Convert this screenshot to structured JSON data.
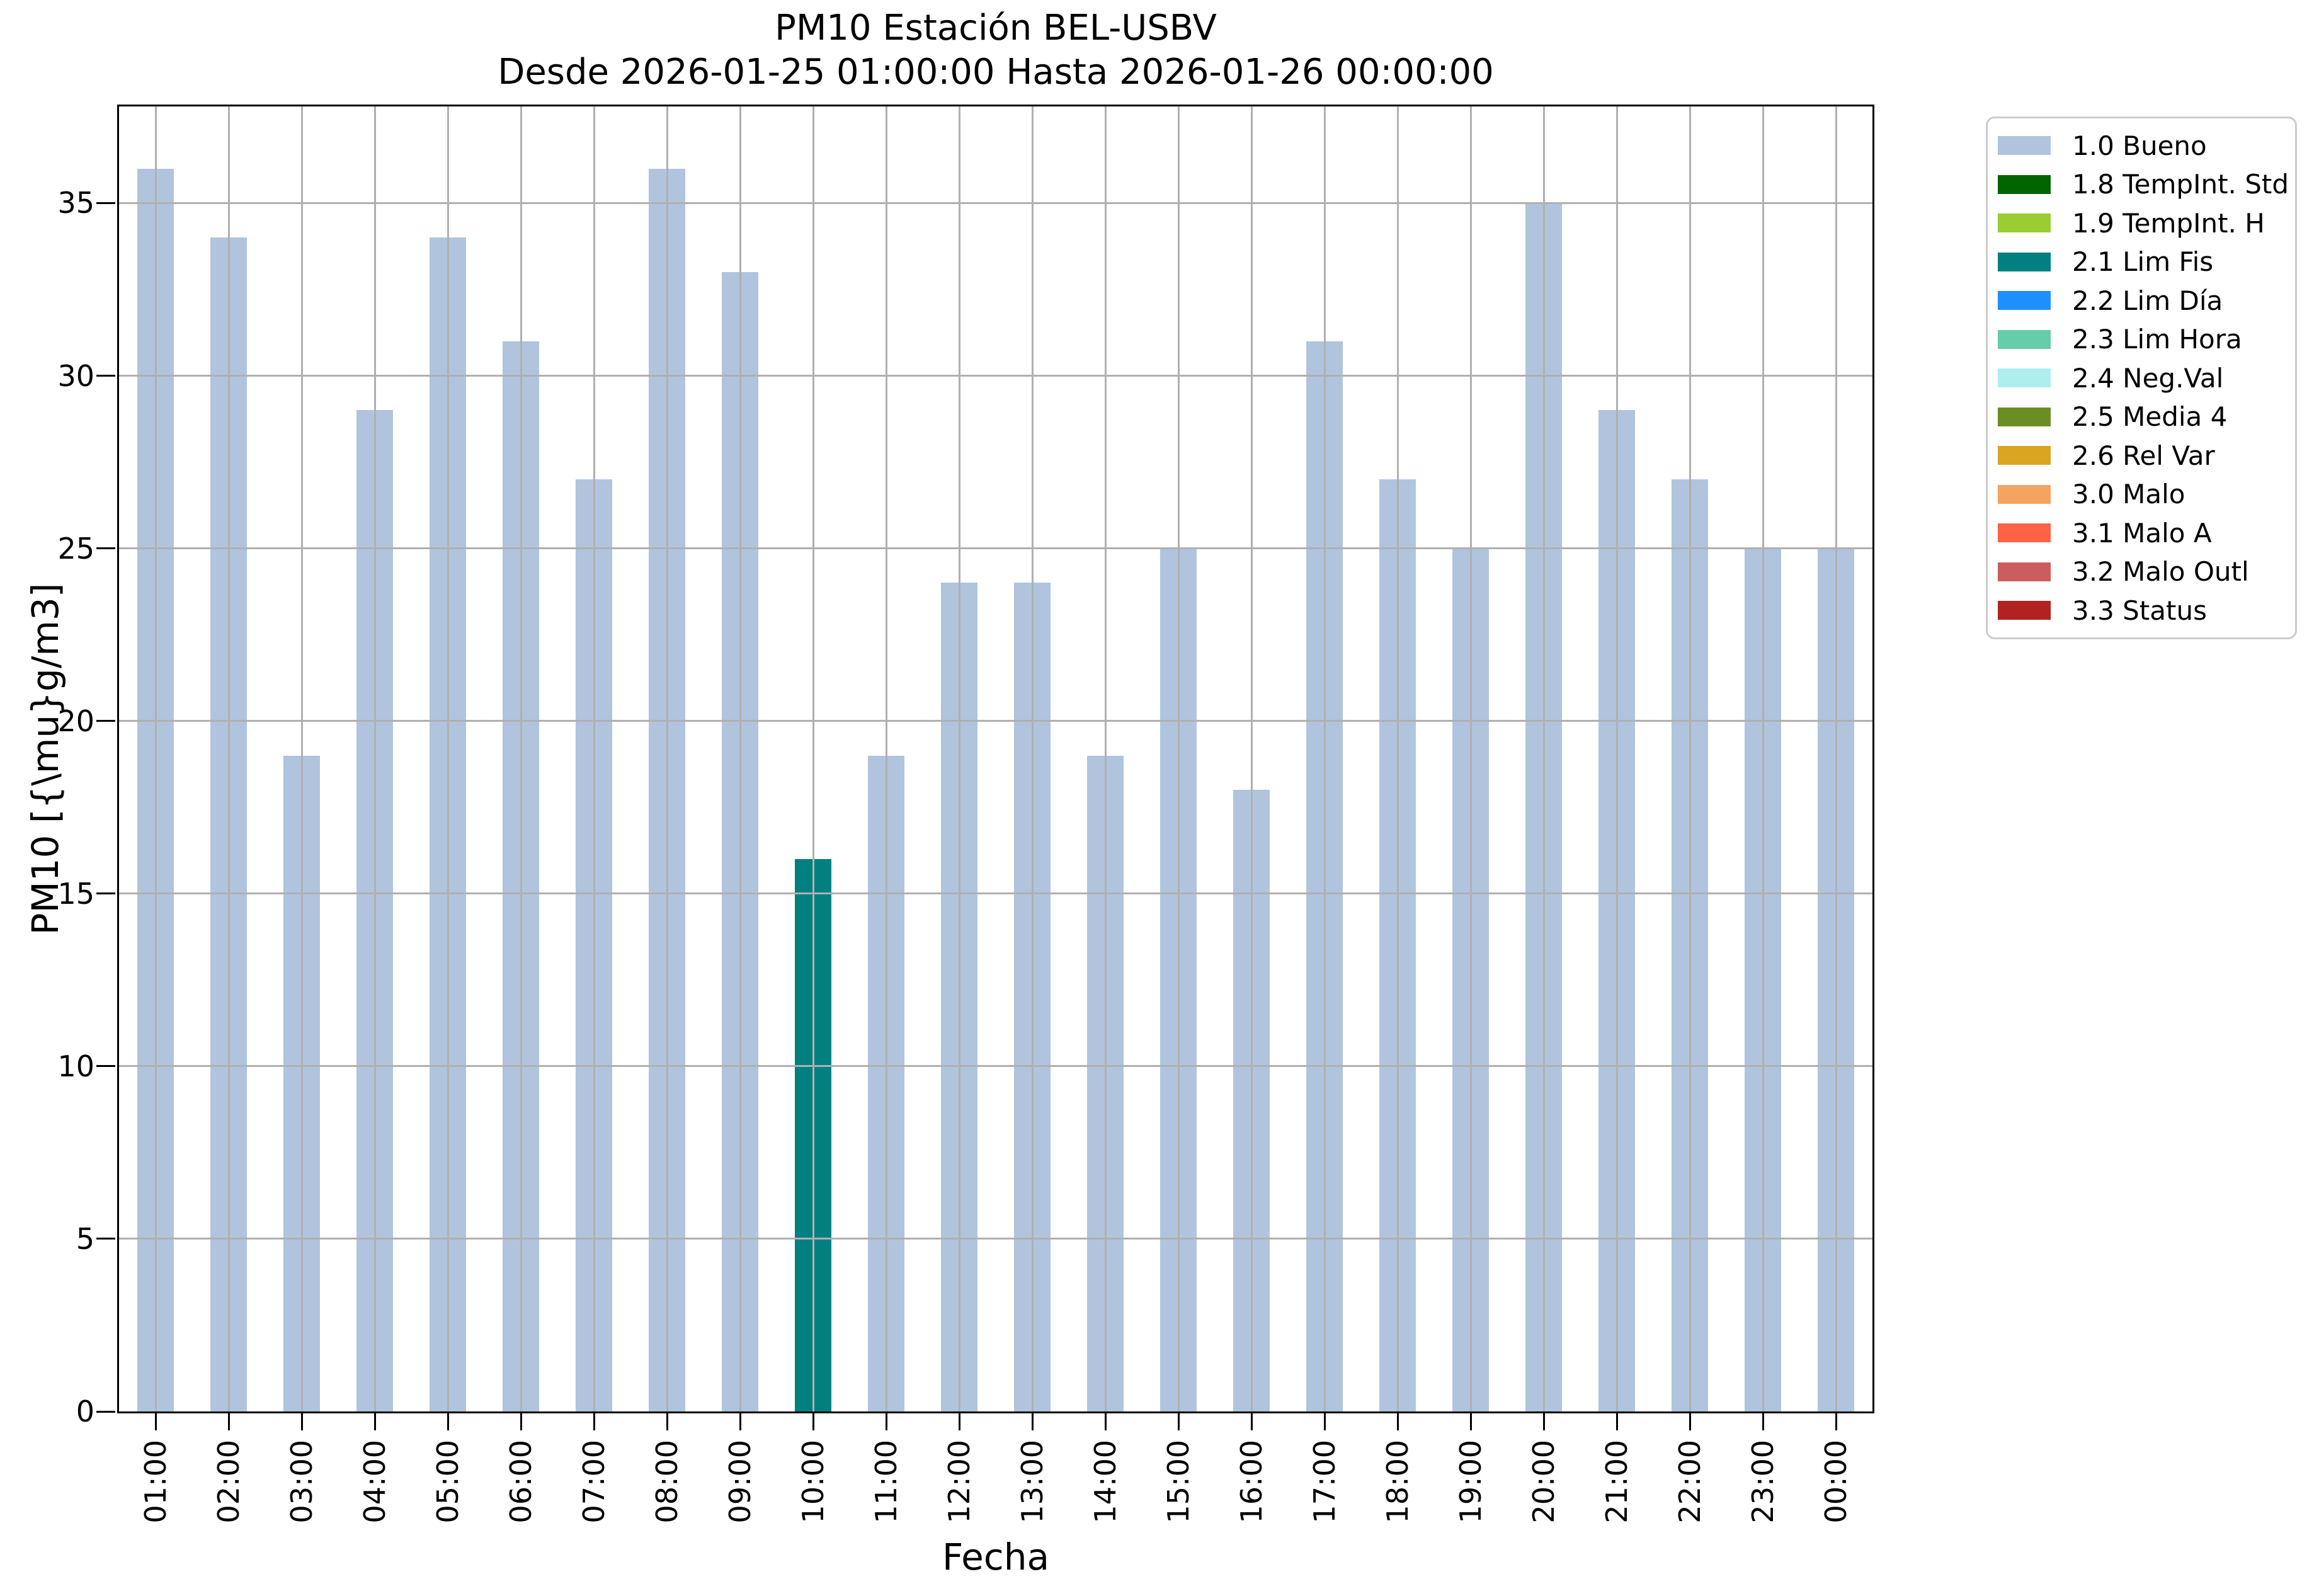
{
  "chart_data": {
    "type": "bar",
    "title": "PM10 Estación BEL-USBV",
    "subtitle": "Desde 2026-01-25 01:00:00 Hasta 2026-01-26 00:00:00",
    "xlabel": "Fecha",
    "ylabel": "PM10 [{\\mu}g/m3]",
    "categories": [
      "01:00",
      "02:00",
      "03:00",
      "04:00",
      "05:00",
      "06:00",
      "07:00",
      "08:00",
      "09:00",
      "10:00",
      "11:00",
      "12:00",
      "13:00",
      "14:00",
      "15:00",
      "16:00",
      "17:00",
      "18:00",
      "19:00",
      "20:00",
      "21:00",
      "22:00",
      "23:00",
      "00:00"
    ],
    "values": [
      36,
      34,
      19,
      29,
      34,
      31,
      27,
      36,
      33,
      16,
      19,
      24,
      24,
      19,
      25,
      18,
      31,
      27,
      25,
      35,
      29,
      27,
      25,
      25
    ],
    "bar_status": [
      "1.0 Bueno",
      "1.0 Bueno",
      "1.0 Bueno",
      "1.0 Bueno",
      "1.0 Bueno",
      "1.0 Bueno",
      "1.0 Bueno",
      "1.0 Bueno",
      "1.0 Bueno",
      "2.1 Lim Fis",
      "1.0 Bueno",
      "1.0 Bueno",
      "1.0 Bueno",
      "1.0 Bueno",
      "1.0 Bueno",
      "1.0 Bueno",
      "1.0 Bueno",
      "1.0 Bueno",
      "1.0 Bueno",
      "1.0 Bueno",
      "1.0 Bueno",
      "1.0 Bueno",
      "1.0 Bueno",
      "1.0 Bueno"
    ],
    "status_colors": {
      "1.0 Bueno": "#b0c4de",
      "2.1 Lim Fis": "#008080"
    },
    "ylim": [
      0,
      37.8
    ],
    "yticks": [
      0,
      5,
      10,
      15,
      20,
      25,
      30,
      35
    ],
    "grid": true,
    "gridline_color": "#b0b0b0",
    "legend_position": "upper-right-outside",
    "legend": [
      {
        "label": "1.0 Bueno",
        "color": "#b0c4de"
      },
      {
        "label": "1.8 TempInt. Std",
        "color": "#006400"
      },
      {
        "label": "1.9 TempInt. H",
        "color": "#9acd32"
      },
      {
        "label": "2.1 Lim Fis",
        "color": "#008080"
      },
      {
        "label": "2.2 Lim Día",
        "color": "#1e90ff"
      },
      {
        "label": "2.3 Lim Hora",
        "color": "#66cdaa"
      },
      {
        "label": "2.4 Neg.Val",
        "color": "#afeeee"
      },
      {
        "label": "2.5 Media 4",
        "color": "#6b8e23"
      },
      {
        "label": "2.6 Rel Var",
        "color": "#daa520"
      },
      {
        "label": "3.0 Malo",
        "color": "#f4a460"
      },
      {
        "label": "3.1 Malo A",
        "color": "#ff6347"
      },
      {
        "label": "3.2 Malo Outl",
        "color": "#cd5c5c"
      },
      {
        "label": "3.3 Status",
        "color": "#b22222"
      }
    ]
  }
}
